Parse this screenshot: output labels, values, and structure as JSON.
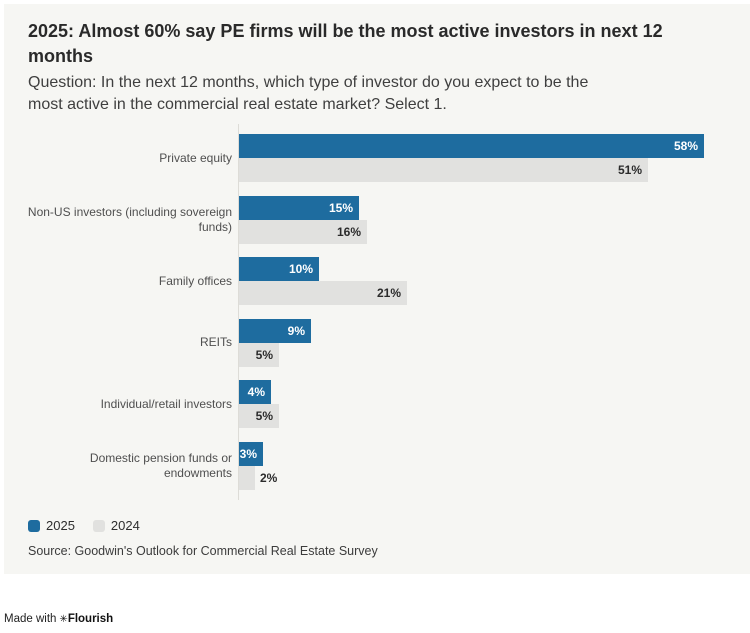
{
  "header": {
    "title": "2025: Almost 60% say PE firms will be the most active investors in next 12 months",
    "title_lines": [
      "2025: Almost 60% say PE firms will be the most active investors in next 12",
      "months"
    ],
    "subtitle": "Question: In the next 12 months, which type of investor do you expect to be the most active in the commercial real estate market? Select 1.",
    "subtitle_lines": [
      "Question: In the next 12 months, which type of investor do you expect to be the",
      "most active in the commercial real estate market? Select 1."
    ]
  },
  "legend": {
    "items": [
      {
        "label": "2025",
        "color": "#1e6c9f"
      },
      {
        "label": "2024",
        "color": "#e1e1df"
      }
    ]
  },
  "source": "Source: Goodwin's Outlook for Commercial Real Estate Survey",
  "footer": {
    "made_with": "Made with",
    "brand": "Flourish",
    "logo_icon": "flourish-asterisk-icon"
  },
  "colors": {
    "page_background": "#ffffff",
    "card_background": "#f6f6f3",
    "bar_2025": "#1e6c9f",
    "bar_2024": "#e1e1df",
    "axis_line": "#dddcd7",
    "value_label_on_blue": "#ffffff",
    "value_label_on_gray": "#2b2b2b"
  },
  "chart_data": {
    "type": "bar",
    "orientation": "horizontal",
    "title": "2025: Almost 60% say PE firms will be the most active investors in next 12 months",
    "categories": [
      "Private equity",
      "Non-US investors (including sovereign funds)",
      "Family offices",
      "REITs",
      "Individual/retail investors",
      "Domestic pension funds or endowments"
    ],
    "category_label_lines": [
      [
        "Private equity"
      ],
      [
        "Non-US investors (including sovereign",
        "funds)"
      ],
      [
        "Family offices"
      ],
      [
        "REITs"
      ],
      [
        "Individual/retail investors"
      ],
      [
        "Domestic pension funds or",
        "endowments"
      ]
    ],
    "series": [
      {
        "name": "2025",
        "color": "#1e6c9f",
        "label_color": "#ffffff",
        "values": [
          58,
          15,
          10,
          9,
          4,
          3
        ]
      },
      {
        "name": "2024",
        "color": "#e1e1df",
        "label_color": "#2b2b2b",
        "values": [
          51,
          16,
          21,
          5,
          5,
          2
        ]
      }
    ],
    "value_suffix": "%",
    "xlim": [
      0,
      63
    ],
    "grid": false,
    "value_labels": "inside-end, outside when bar too short",
    "legend_position": "bottom-left"
  }
}
